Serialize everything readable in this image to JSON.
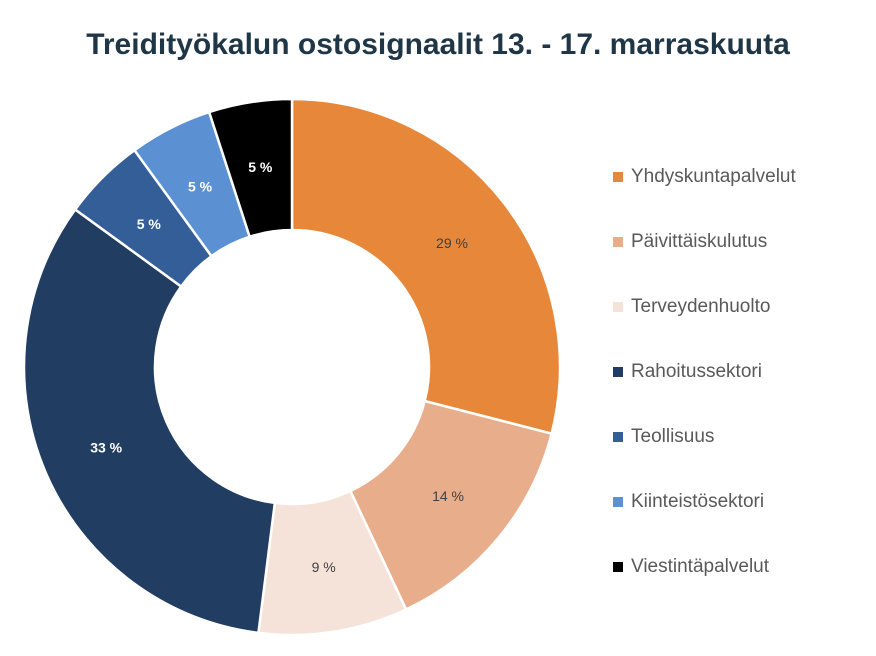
{
  "chart_data": {
    "type": "pie",
    "variant": "donut",
    "title": "Treidityökalun ostosignaalit 13. - 17. marraskuuta",
    "legend_position": "right",
    "slices": [
      {
        "label": "Yhdyskuntapalvelut",
        "value": 29,
        "data_label": "29 %",
        "color": "#E6873A",
        "label_color": "#404040"
      },
      {
        "label": "Päivittäiskulutus",
        "value": 14,
        "data_label": "14 %",
        "color": "#E8AD8A",
        "label_color": "#404040"
      },
      {
        "label": "Terveydenhuolto",
        "value": 9,
        "data_label": "9 %",
        "color": "#F5E3D9",
        "label_color": "#404040"
      },
      {
        "label": "Rahoitussektori",
        "value": 33,
        "data_label": "33 %",
        "color": "#223D62",
        "label_color": "#FFFFFF"
      },
      {
        "label": "Teollisuus",
        "value": 5,
        "data_label": "5 %",
        "color": "#345E98",
        "label_color": "#FFFFFF"
      },
      {
        "label": "Kiinteistösektori",
        "value": 5,
        "data_label": "5 %",
        "color": "#5B91D3",
        "label_color": "#FFFFFF"
      },
      {
        "label": "Viestintäpalvelut",
        "value": 5,
        "data_label": "5 %",
        "color": "#000000",
        "label_color": "#FFFFFF"
      }
    ]
  }
}
